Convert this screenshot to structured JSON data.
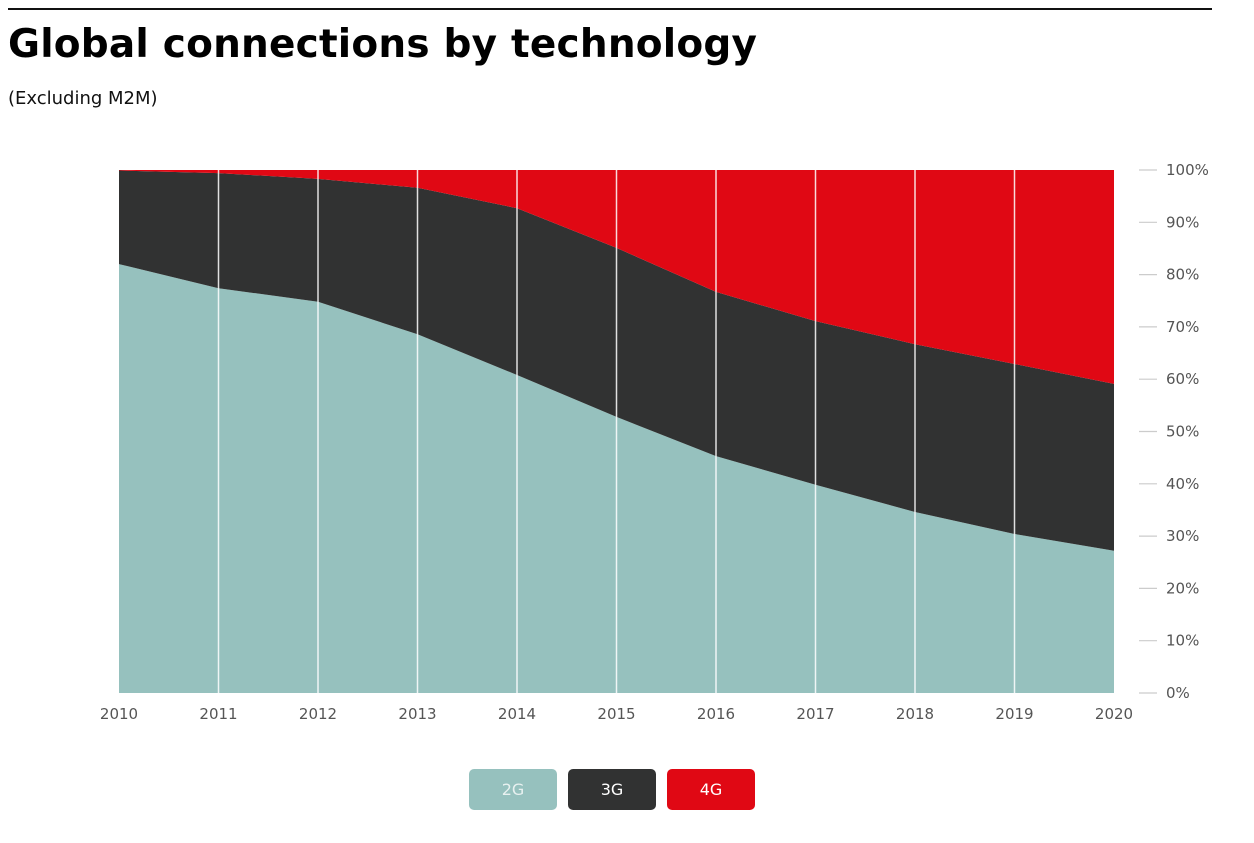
{
  "header": {
    "title": "Global connections by technology",
    "subtitle": "(Excluding M2M)"
  },
  "colors": {
    "2G": "#96c1be",
    "3G": "#313232",
    "4G": "#e00814",
    "grid": "#ffffff",
    "tick": "#cccccc",
    "text": "#555555"
  },
  "chart_data": {
    "type": "area",
    "stacked": true,
    "title": "Global connections by technology",
    "subtitle": "(Excluding M2M)",
    "xlabel": "",
    "ylabel": "",
    "x": [
      "2010",
      "2011",
      "2012",
      "2013",
      "2014",
      "2015",
      "2016",
      "2017",
      "2018",
      "2019",
      "2020"
    ],
    "series": [
      {
        "name": "2G",
        "values": [
          82.0,
          77.4,
          74.8,
          68.6,
          60.8,
          52.8,
          45.3,
          39.8,
          34.6,
          30.4,
          27.2
        ]
      },
      {
        "name": "3G",
        "values": [
          17.9,
          22.0,
          23.5,
          28.0,
          31.9,
          32.3,
          31.4,
          31.3,
          32.1,
          32.5,
          31.9
        ]
      },
      {
        "name": "4G",
        "values": [
          0.1,
          0.6,
          1.7,
          3.4,
          7.3,
          14.9,
          23.3,
          28.9,
          33.3,
          37.1,
          40.9
        ]
      }
    ],
    "ylim": [
      0,
      100
    ],
    "yticks": [
      "0%",
      "10%",
      "20%",
      "30%",
      "40%",
      "50%",
      "60%",
      "70%",
      "80%",
      "90%",
      "100%"
    ],
    "y_axis_side": "right",
    "grid": "vertical",
    "legend": {
      "placement": "bottom-center",
      "entries": [
        "2G",
        "3G",
        "4G"
      ]
    }
  }
}
